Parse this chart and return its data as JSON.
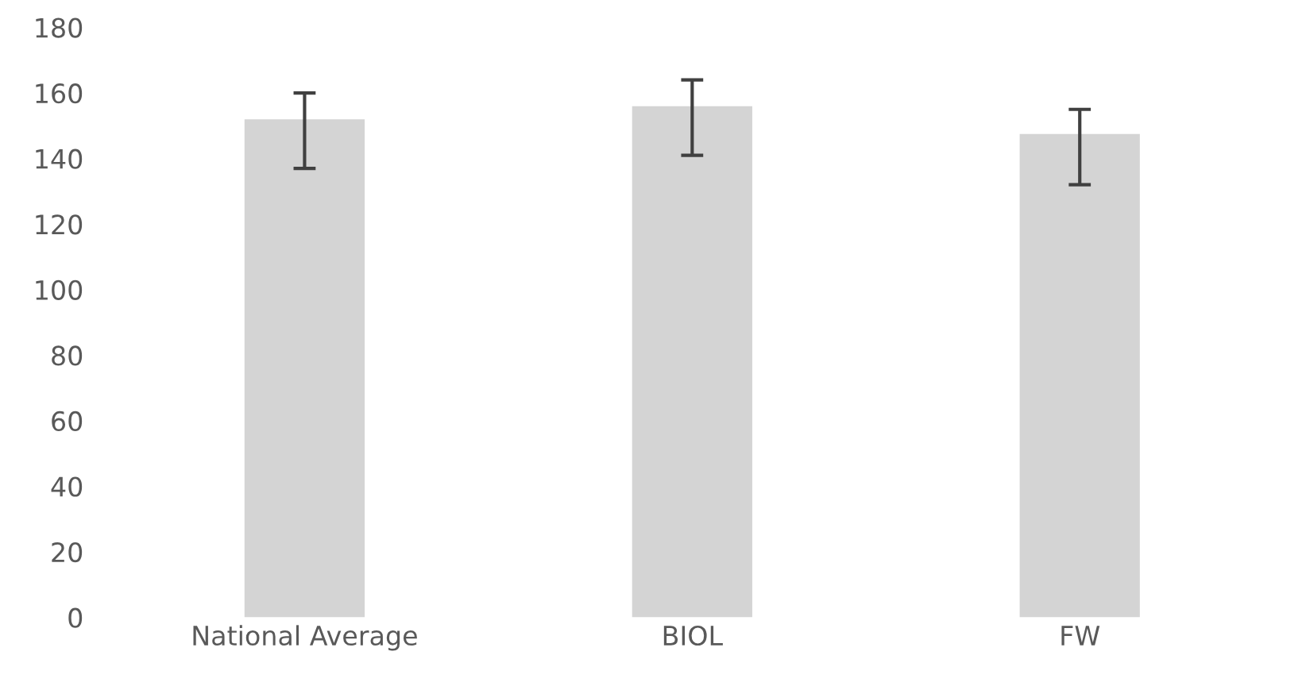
{
  "chart_data": {
    "type": "bar",
    "categories": [
      "National Average",
      "BIOL",
      "FW"
    ],
    "values": [
      152,
      156,
      147.5
    ],
    "errors": [
      [
        137,
        160
      ],
      [
        141,
        164
      ],
      [
        132,
        155
      ]
    ],
    "color": "#d4d4d4",
    "ylim": [
      0,
      180
    ],
    "yticks": [
      0,
      20,
      40,
      60,
      80,
      100,
      120,
      140,
      160,
      180
    ],
    "grid": false,
    "legend": false
  }
}
